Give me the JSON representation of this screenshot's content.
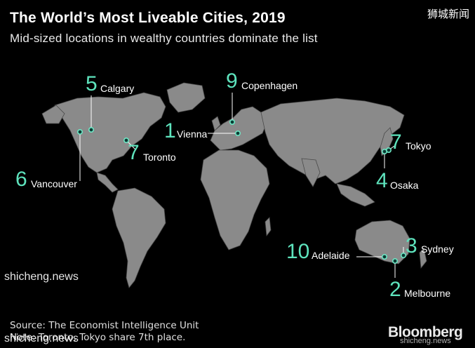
{
  "title": "The World’s Most Liveable Cities, 2019",
  "subtitle": "Mid-sized locations in wealthy countries dominate the list",
  "watermark_top": "狮城新闻",
  "watermark_bottom": "shicheng.news",
  "watermark_bottom_right": "shicheng.news",
  "accent_color": "#5ee3bd",
  "land_color": "#8a8a8a",
  "cities": [
    {
      "rank": "1",
      "name": "Vienna"
    },
    {
      "rank": "2",
      "name": "Melbourne"
    },
    {
      "rank": "3",
      "name": "Sydney"
    },
    {
      "rank": "4",
      "name": "Osaka"
    },
    {
      "rank": "5",
      "name": "Calgary"
    },
    {
      "rank": "6",
      "name": "Vancouver"
    },
    {
      "rank": "7",
      "name": "Toronto"
    },
    {
      "rank": "7",
      "name": "Tokyo"
    },
    {
      "rank": "9",
      "name": "Copenhagen"
    },
    {
      "rank": "10",
      "name": "Adelaide"
    }
  ],
  "source_line1": "Source: The Economist Intelligence Unit",
  "source_line2": "Note: Toronto, Tokyo share 7th place.",
  "brand": "Bloomberg"
}
